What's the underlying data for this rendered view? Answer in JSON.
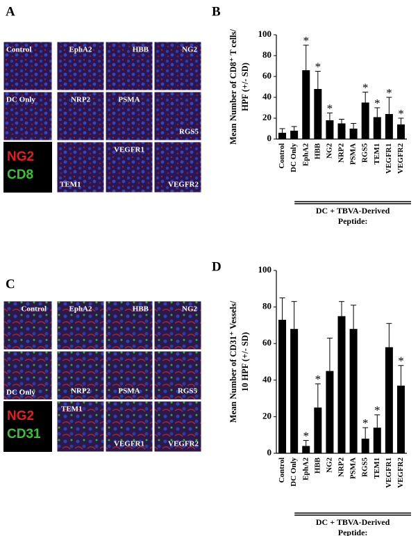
{
  "panel_letters": [
    "A",
    "B",
    "C",
    "D"
  ],
  "image_panels": [
    {
      "labels": [
        "Control",
        "DC Only",
        "EphA2",
        "HBB",
        "NG2",
        "NRP2",
        "PSMA",
        "RGS5",
        "TEM1",
        "VEGFR1",
        "VEGFR2"
      ],
      "stains": [
        {
          "name": "NG2",
          "color": "#e0201e"
        },
        {
          "name": "CD8",
          "color": "#35c435"
        }
      ]
    },
    {
      "labels": [
        "Control",
        "DC Only",
        "EphA2",
        "HBB",
        "NG2",
        "NRP2",
        "PSMA",
        "RGS5",
        "TEM1",
        "VEGFR1",
        "VEGFR2"
      ],
      "stains": [
        {
          "name": "NG2",
          "color": "#e0201e"
        },
        {
          "name": "CD31",
          "color": "#35c435"
        }
      ]
    }
  ],
  "chart_data": [
    {
      "type": "bar",
      "y_label": [
        "Mean Number of CD8⁺ T cells/",
        "HPF (+/- SD)"
      ],
      "categories": [
        "Control",
        "DC Only",
        "EphA2",
        "HBB",
        "NG2",
        "NRP2",
        "PSMA",
        "RGS5",
        "TEM1",
        "VEGFR1",
        "VEGFR2"
      ],
      "values": [
        6,
        8,
        66,
        48,
        18,
        15,
        10,
        35,
        21,
        24,
        14
      ],
      "errors": [
        4,
        4,
        24,
        17,
        7,
        4,
        5,
        10,
        9,
        16,
        6
      ],
      "significant": [
        false,
        false,
        true,
        true,
        true,
        false,
        false,
        true,
        true,
        true,
        true
      ],
      "marker": "*",
      "color": "#000000",
      "group_label": [
        "DC + TBVA-Derived",
        "Peptide:"
      ],
      "ylim": [
        0,
        100
      ],
      "yticks": [
        0,
        20,
        40,
        60,
        80,
        100
      ]
    },
    {
      "type": "bar",
      "y_label": [
        "Mean Number of CD31⁺ Vessels/",
        "10 HPF (+/- SD)"
      ],
      "categories": [
        "Control",
        "DC Only",
        "EphA2",
        "HBB",
        "NG2",
        "NRP2",
        "PSMA",
        "RGS5",
        "TEM1",
        "VEGFR1",
        "VEGFR2"
      ],
      "values": [
        73,
        68,
        4,
        25,
        45,
        75,
        68,
        8,
        14,
        58,
        37
      ],
      "errors": [
        12,
        15,
        3,
        13,
        18,
        8,
        13,
        6,
        7,
        13,
        11
      ],
      "significant": [
        false,
        false,
        true,
        true,
        false,
        false,
        false,
        true,
        true,
        false,
        true
      ],
      "marker": "*",
      "color": "#000000",
      "group_label": [
        "DC + TBVA-Derived",
        "Peptide:"
      ],
      "ylim": [
        0,
        100
      ],
      "yticks": [
        0,
        20,
        40,
        60,
        80,
        100
      ]
    }
  ]
}
